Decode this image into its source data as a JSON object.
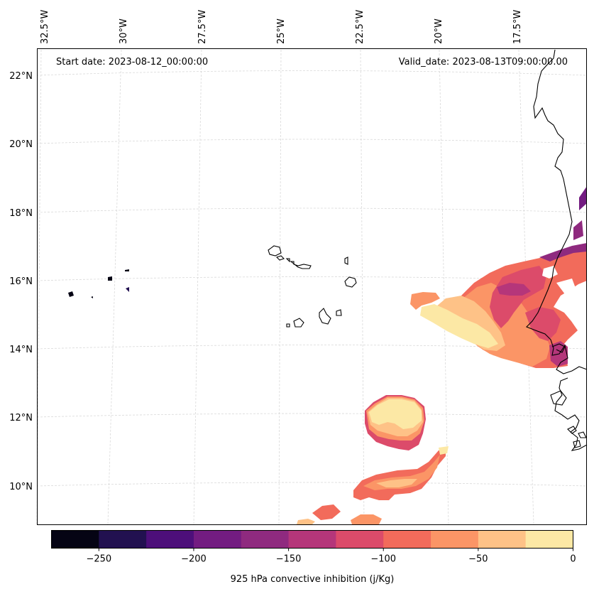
{
  "header": {
    "start_date": "Start date: 2023-08-12_00:00:00",
    "valid_date": "Valid_date: 2023-08-13T09:00:00.00"
  },
  "map": {
    "lon_labels": [
      "32.5°W",
      "30°W",
      "27.5°W",
      "25°W",
      "22.5°W",
      "20°W",
      "17.5°W"
    ],
    "lat_labels": [
      "22°N",
      "20°N",
      "18°N",
      "16°N",
      "14°N",
      "12°N",
      "10°N"
    ]
  },
  "colorbar": {
    "title": "925 hPa convective inhibition (j/Kg)",
    "tick_labels": [
      "−250",
      "−200",
      "−150",
      "−100",
      "−50",
      "0"
    ],
    "levels": [
      -275,
      -250,
      -225,
      -200,
      -175,
      -150,
      -125,
      -100,
      -75,
      -50,
      -25,
      0
    ],
    "colors": [
      "#050414",
      "#221150",
      "#4d0f7a",
      "#731c81",
      "#8f2a7f",
      "#b5367a",
      "#dc4b6a",
      "#f26b5b",
      "#fb9566",
      "#fec287",
      "#fce8a5"
    ]
  }
}
